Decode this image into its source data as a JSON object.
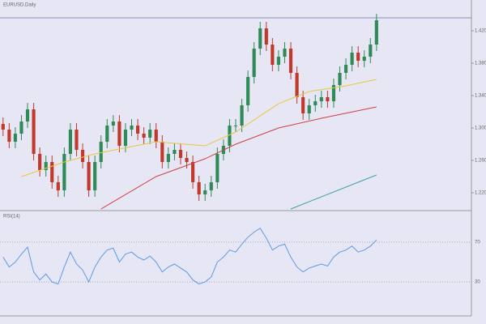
{
  "chart_data": {
    "type": "candlestick",
    "title": "EURUSD,Daily",
    "xlim": [
      -0.5,
      76.5
    ],
    "ylim": [
      1.2,
      1.45
    ],
    "yticks": [
      {
        "value": 1.22,
        "label": "1.2200"
      },
      {
        "value": 1.26,
        "label": "1.2600"
      },
      {
        "value": 1.3,
        "label": "1.3000"
      },
      {
        "value": 1.34,
        "label": "1.3400"
      },
      {
        "value": 1.38,
        "label": "1.3800"
      },
      {
        "value": 1.42,
        "label": "1.4200"
      }
    ],
    "hline": 1.436,
    "up_color": "#2e8b57",
    "down_color": "#c0392b",
    "open": [
      1.305,
      1.298,
      1.283,
      1.293,
      1.308,
      1.323,
      1.268,
      1.248,
      1.258,
      1.233,
      1.223,
      1.268,
      1.298,
      1.273,
      1.258,
      1.223,
      1.258,
      1.283,
      1.303,
      1.308,
      1.278,
      1.298,
      1.303,
      1.293,
      1.288,
      1.298,
      1.283,
      1.258,
      1.268,
      1.273,
      1.263,
      1.258,
      1.233,
      1.218,
      1.223,
      1.233,
      1.268,
      1.278,
      1.303,
      1.303,
      1.328,
      1.363,
      1.398,
      1.423,
      1.403,
      1.378,
      1.388,
      1.398,
      1.368,
      1.338,
      1.318,
      1.328,
      1.333,
      1.338,
      1.333,
      1.353,
      1.368,
      1.378,
      1.393,
      1.383,
      1.388,
      1.403
    ],
    "high": [
      1.313,
      1.306,
      1.301,
      1.316,
      1.331,
      1.331,
      1.276,
      1.266,
      1.266,
      1.241,
      1.276,
      1.306,
      1.306,
      1.281,
      1.266,
      1.266,
      1.291,
      1.311,
      1.316,
      1.316,
      1.306,
      1.311,
      1.311,
      1.301,
      1.306,
      1.306,
      1.291,
      1.276,
      1.281,
      1.281,
      1.271,
      1.266,
      1.241,
      1.231,
      1.241,
      1.276,
      1.286,
      1.311,
      1.311,
      1.336,
      1.371,
      1.406,
      1.431,
      1.431,
      1.411,
      1.396,
      1.406,
      1.406,
      1.376,
      1.346,
      1.336,
      1.341,
      1.346,
      1.346,
      1.361,
      1.376,
      1.386,
      1.401,
      1.401,
      1.396,
      1.411,
      1.441
    ],
    "low": [
      1.29,
      1.275,
      1.275,
      1.285,
      1.3,
      1.26,
      1.24,
      1.24,
      1.225,
      1.215,
      1.215,
      1.26,
      1.265,
      1.25,
      1.215,
      1.215,
      1.25,
      1.275,
      1.295,
      1.27,
      1.27,
      1.29,
      1.285,
      1.28,
      1.28,
      1.275,
      1.25,
      1.25,
      1.26,
      1.255,
      1.25,
      1.225,
      1.21,
      1.21,
      1.215,
      1.225,
      1.26,
      1.27,
      1.295,
      1.295,
      1.32,
      1.355,
      1.39,
      1.395,
      1.37,
      1.37,
      1.38,
      1.36,
      1.33,
      1.31,
      1.31,
      1.32,
      1.325,
      1.325,
      1.325,
      1.345,
      1.36,
      1.37,
      1.375,
      1.375,
      1.38,
      1.395
    ],
    "close": [
      1.298,
      1.283,
      1.293,
      1.308,
      1.323,
      1.268,
      1.248,
      1.258,
      1.233,
      1.223,
      1.268,
      1.298,
      1.273,
      1.258,
      1.223,
      1.258,
      1.283,
      1.303,
      1.308,
      1.278,
      1.298,
      1.303,
      1.293,
      1.288,
      1.298,
      1.283,
      1.258,
      1.268,
      1.273,
      1.263,
      1.258,
      1.233,
      1.218,
      1.223,
      1.233,
      1.268,
      1.278,
      1.303,
      1.303,
      1.328,
      1.363,
      1.398,
      1.423,
      1.403,
      1.378,
      1.388,
      1.398,
      1.368,
      1.338,
      1.318,
      1.328,
      1.333,
      1.338,
      1.333,
      1.353,
      1.368,
      1.378,
      1.393,
      1.383,
      1.388,
      1.403,
      1.433
    ],
    "series": [
      {
        "color": "#d04040",
        "x": [
          16,
          25,
          33,
          38,
          45,
          52,
          61
        ],
        "values": [
          1.2,
          1.24,
          1.262,
          1.28,
          1.3,
          1.312,
          1.326
        ]
      },
      {
        "color": "#e8c840",
        "x": [
          3,
          10,
          15,
          25,
          33,
          38,
          45,
          50,
          56,
          61
        ],
        "values": [
          1.24,
          1.258,
          1.268,
          1.283,
          1.278,
          1.295,
          1.33,
          1.345,
          1.352,
          1.36
        ]
      },
      {
        "color": "#3aa0a0",
        "x": [
          47,
          61
        ],
        "values": [
          1.2,
          1.242
        ]
      }
    ],
    "rsi": {
      "title": "RSI(14)",
      "color": "#5b9be8",
      "ylim": [
        0,
        100
      ],
      "yticks": [
        30,
        70
      ],
      "values": [
        55,
        45,
        50,
        58,
        65,
        40,
        32,
        38,
        30,
        28,
        45,
        60,
        48,
        42,
        30,
        45,
        55,
        62,
        64,
        50,
        58,
        60,
        55,
        52,
        56,
        50,
        40,
        45,
        48,
        44,
        40,
        32,
        28,
        30,
        35,
        50,
        55,
        62,
        60,
        68,
        75,
        80,
        84,
        74,
        62,
        66,
        68,
        55,
        45,
        40,
        44,
        46,
        48,
        46,
        55,
        60,
        62,
        66,
        60,
        62,
        66,
        72
      ]
    }
  }
}
